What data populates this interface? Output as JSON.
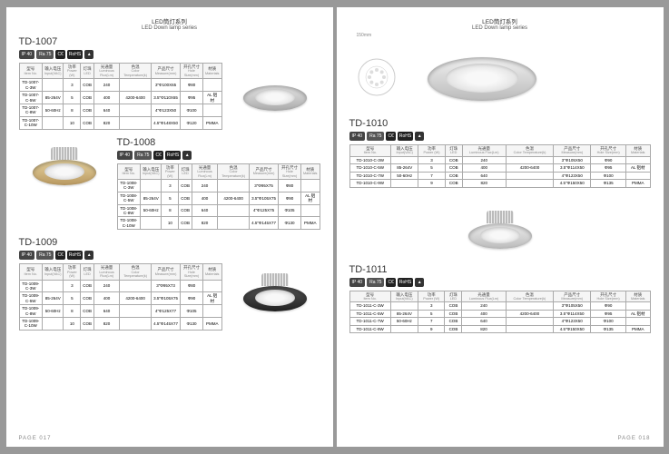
{
  "header": {
    "cn": "LED筒灯系列",
    "en": "LED Down lamp series"
  },
  "badges": {
    "ip": "IP 40",
    "ra": "Ra 75",
    "ce": "C€",
    "rohs": "RoHS"
  },
  "cols": [
    {
      "cn": "型号",
      "en": "Item No."
    },
    {
      "cn": "输入电压",
      "en": "Input(VAC)"
    },
    {
      "cn": "功率",
      "en": "Power (W)"
    },
    {
      "cn": "灯珠",
      "en": "LED"
    },
    {
      "cn": "光通量",
      "en": "Luminous Flux(Lm)"
    },
    {
      "cn": "色温",
      "en": "Color Temperature(k)"
    },
    {
      "cn": "产品尺寸",
      "en": "Measure(mm)"
    },
    {
      "cn": "开孔尺寸",
      "en": "Hole Size(mm)"
    },
    {
      "cn": "材质",
      "en": "Materials"
    }
  ],
  "products": [
    {
      "model": "TD-1007",
      "color": "silver",
      "fins": false,
      "rows": [
        [
          "TD-1007-C-3W",
          "",
          "3",
          "COB",
          "240",
          "",
          "3\"Φ100X65",
          "Φ80",
          ""
        ],
        [
          "TD-1007-C-5W",
          "85-264V",
          "5",
          "COB",
          "400",
          "4200-6400",
          "3.5\"Φ110X65",
          "Φ95",
          "AL 铝材"
        ],
        [
          "TD-1007-C-8W",
          "50-60Hz",
          "8",
          "COB",
          "640",
          "",
          "4\"Φ123X50",
          "Φ100",
          ""
        ],
        [
          "TD-1007-C-10W",
          "",
          "10",
          "COB",
          "820",
          "",
          "4.5\"Φ148X50",
          "Φ120",
          "PMMA"
        ]
      ]
    },
    {
      "model": "TD-1008",
      "color": "gold",
      "fins": true,
      "rows": [
        [
          "TD-1008-C-3W",
          "",
          "3",
          "COB",
          "240",
          "",
          "3\"Φ95X75",
          "Φ80",
          ""
        ],
        [
          "TD-1008-C-5W",
          "85-264V",
          "5",
          "COB",
          "400",
          "4200-6400",
          "3.5\"Φ105X75",
          "Φ90",
          "AL 铝材"
        ],
        [
          "TD-1008-C-8W",
          "50-60Hz",
          "8",
          "COB",
          "640",
          "",
          "4\"Φ125X75",
          "Φ105",
          ""
        ],
        [
          "TD-1008-C-10W",
          "",
          "10",
          "COB",
          "820",
          "",
          "4.5\"Φ145X77",
          "Φ130",
          "PMMA"
        ]
      ]
    },
    {
      "model": "TD-1009",
      "color": "black",
      "fins": true,
      "rows": [
        [
          "TD-1009-C-3W",
          "",
          "3",
          "COB",
          "240",
          "",
          "3\"Φ95X73",
          "Φ80",
          ""
        ],
        [
          "TD-1009-C-5W",
          "85-264V",
          "5",
          "COB",
          "400",
          "4200-6400",
          "3.5\"Φ105X75",
          "Φ90",
          "AL 铝材"
        ],
        [
          "TD-1009-C-8W",
          "50-60Hz",
          "8",
          "COB",
          "640",
          "",
          "4\"Φ125X77",
          "Φ105",
          ""
        ],
        [
          "TD-1009-C-10W",
          "",
          "10",
          "COB",
          "820",
          "",
          "4.5\"Φ145X77",
          "Φ130",
          "PMMA"
        ]
      ]
    },
    {
      "model": "TD-1010",
      "color": "chrome",
      "fins": false,
      "big": true,
      "dim": "150mm",
      "rows": [
        [
          "TD-1010-C-3W",
          "",
          "3",
          "COB",
          "240",
          "",
          "3\"Φ105X50",
          "Φ90",
          ""
        ],
        [
          "TD-1010-C-5W",
          "85-264V",
          "5",
          "COB",
          "400",
          "4200-6400",
          "3.5\"Φ114X50",
          "Φ95",
          "AL 铝材"
        ],
        [
          "TD-1010-C-7W",
          "50-60Hz",
          "7",
          "COB",
          "640",
          "",
          "4\"Φ123X50",
          "Φ100",
          ""
        ],
        [
          "TD-1010-C-9W",
          "",
          "9",
          "COB",
          "820",
          "",
          "4.5\"Φ150X50",
          "Φ135",
          "PMMA"
        ]
      ]
    },
    {
      "model": "TD-1011",
      "color": "chrome",
      "fins": true,
      "rows": [
        [
          "TD-1011-C-3W",
          "",
          "3",
          "COB",
          "240",
          "",
          "3\"Φ105X50",
          "Φ90",
          ""
        ],
        [
          "TD-1011-C-5W",
          "85-264V",
          "5",
          "COB",
          "400",
          "4200-6400",
          "3.5\"Φ114X50",
          "Φ95",
          "AL 铝材"
        ],
        [
          "TD-1011-C-7W",
          "50-60Hz",
          "7",
          "COB",
          "640",
          "",
          "4\"Φ123X50",
          "Φ100",
          ""
        ],
        [
          "TD-1011-C-9W",
          "",
          "9",
          "COB",
          "820",
          "",
          "4.5\"Φ150X50",
          "Φ135",
          "PMMA"
        ]
      ]
    }
  ],
  "pageL": "PAGE 017",
  "pageR": "PAGE 018"
}
